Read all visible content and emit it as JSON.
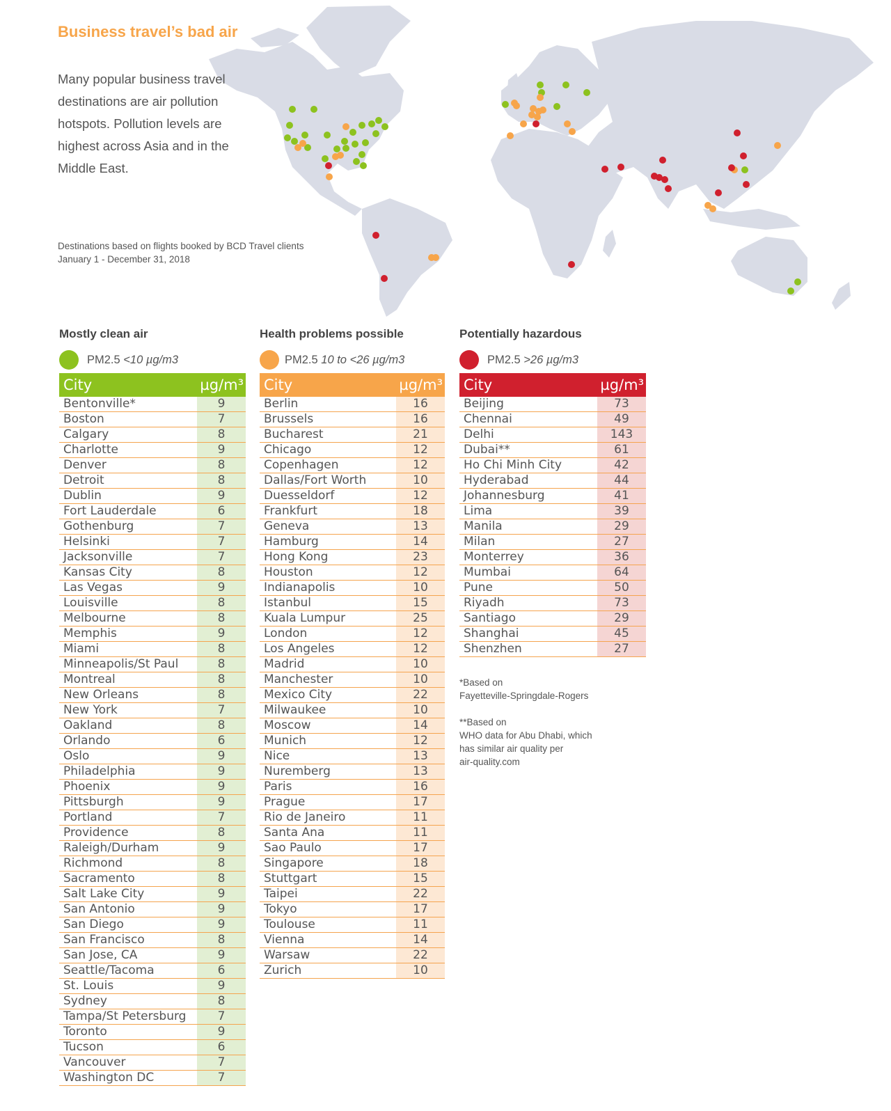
{
  "title": "Business travel’s bad air",
  "intro": "Many popular business travel destinations are air pollution hotspots. Pollution levels are highest across Asia and in the Middle East.",
  "source_line1": "Destinations based on flights booked by BCD Travel clients",
  "source_line2": "January 1 - December 31, 2018",
  "colors": {
    "green": "#8dc21f",
    "orange": "#f7a54a",
    "red": "#d0202e",
    "land": "#d9dce6"
  },
  "groups": [
    {
      "heading": "Mostly clean air",
      "legend_prefix": "PM2.5 ",
      "legend_range": "<10 µg/m3",
      "color": "green"
    },
    {
      "heading": "Health problems possible",
      "legend_prefix": "PM2.5 ",
      "legend_range": "10 to <26 µg/m3",
      "color": "orange"
    },
    {
      "heading": "Potentially hazardous",
      "legend_prefix": "PM2.5 ",
      "legend_range": ">26 µg/m3",
      "color": "red"
    }
  ],
  "table_header": {
    "city": "City",
    "unit": "µg/m³"
  },
  "tables": {
    "clean": [
      [
        "Bentonville*",
        "9"
      ],
      [
        "Boston",
        "7"
      ],
      [
        "Calgary",
        "8"
      ],
      [
        "Charlotte",
        "9"
      ],
      [
        "Denver",
        "8"
      ],
      [
        "Detroit",
        "8"
      ],
      [
        "Dublin",
        "9"
      ],
      [
        "Fort Lauderdale",
        "6"
      ],
      [
        "Gothenburg",
        "7"
      ],
      [
        "Helsinki",
        "7"
      ],
      [
        "Jacksonville",
        "7"
      ],
      [
        "Kansas City",
        "8"
      ],
      [
        "Las Vegas",
        "9"
      ],
      [
        "Louisville",
        "8"
      ],
      [
        "Melbourne",
        "8"
      ],
      [
        "Memphis",
        "9"
      ],
      [
        "Miami",
        "8"
      ],
      [
        "Minneapolis/St Paul",
        "8"
      ],
      [
        "Montreal",
        "8"
      ],
      [
        "New Orleans",
        "8"
      ],
      [
        "New York",
        "7"
      ],
      [
        "Oakland",
        "8"
      ],
      [
        "Orlando",
        "6"
      ],
      [
        "Oslo",
        "9"
      ],
      [
        "Philadelphia",
        "9"
      ],
      [
        "Phoenix",
        "9"
      ],
      [
        "Pittsburgh",
        "9"
      ],
      [
        "Portland",
        "7"
      ],
      [
        "Providence",
        "8"
      ],
      [
        "Raleigh/Durham",
        "9"
      ],
      [
        "Richmond",
        "8"
      ],
      [
        "Sacramento",
        "8"
      ],
      [
        "Salt Lake City",
        "9"
      ],
      [
        "San Antonio",
        "9"
      ],
      [
        "San Diego",
        "9"
      ],
      [
        "San Francisco",
        "8"
      ],
      [
        "San Jose, CA",
        "9"
      ],
      [
        "Seattle/Tacoma",
        "6"
      ],
      [
        "St. Louis",
        "9"
      ],
      [
        "Sydney",
        "8"
      ],
      [
        "Tampa/St Petersburg",
        "7"
      ],
      [
        "Toronto",
        "9"
      ],
      [
        "Tucson",
        "6"
      ],
      [
        "Vancouver",
        "7"
      ],
      [
        "Washington DC",
        "7"
      ]
    ],
    "moderate": [
      [
        "Berlin",
        "16"
      ],
      [
        "Brussels",
        "16"
      ],
      [
        "Bucharest",
        "21"
      ],
      [
        "Chicago",
        "12"
      ],
      [
        "Copenhagen",
        "12"
      ],
      [
        "Dallas/Fort Worth",
        "10"
      ],
      [
        "Duesseldorf",
        "12"
      ],
      [
        "Frankfurt",
        "18"
      ],
      [
        "Geneva",
        "13"
      ],
      [
        "Hamburg",
        "14"
      ],
      [
        "Hong Kong",
        "23"
      ],
      [
        "Houston",
        "12"
      ],
      [
        "Indianapolis",
        "10"
      ],
      [
        "Istanbul",
        "15"
      ],
      [
        "Kuala Lumpur",
        "25"
      ],
      [
        "London",
        "12"
      ],
      [
        "Los Angeles",
        "12"
      ],
      [
        "Madrid",
        "10"
      ],
      [
        "Manchester",
        "10"
      ],
      [
        "Mexico City",
        "22"
      ],
      [
        "Milwaukee",
        "10"
      ],
      [
        "Moscow",
        "14"
      ],
      [
        "Munich",
        "12"
      ],
      [
        "Nice",
        "13"
      ],
      [
        "Nuremberg",
        "13"
      ],
      [
        "Paris",
        "16"
      ],
      [
        "Prague",
        "17"
      ],
      [
        "Rio de Janeiro",
        "11"
      ],
      [
        "Santa Ana",
        "11"
      ],
      [
        "Sao Paulo",
        "17"
      ],
      [
        "Singapore",
        "18"
      ],
      [
        "Stuttgart",
        "15"
      ],
      [
        "Taipei",
        "22"
      ],
      [
        "Tokyo",
        "17"
      ],
      [
        "Toulouse",
        "11"
      ],
      [
        "Vienna",
        "14"
      ],
      [
        "Warsaw",
        "22"
      ],
      [
        "Zurich",
        "10"
      ]
    ],
    "hazardous": [
      [
        "Beijing",
        "73"
      ],
      [
        "Chennai",
        "49"
      ],
      [
        "Delhi",
        "143"
      ],
      [
        "Dubai**",
        "61"
      ],
      [
        "Ho Chi Minh City",
        "42"
      ],
      [
        "Hyderabad",
        "44"
      ],
      [
        "Johannesburg",
        "41"
      ],
      [
        "Lima",
        "39"
      ],
      [
        "Manila",
        "29"
      ],
      [
        "Milan",
        "27"
      ],
      [
        "Monterrey",
        "36"
      ],
      [
        "Mumbai",
        "64"
      ],
      [
        "Pune",
        "50"
      ],
      [
        "Riyadh",
        "73"
      ],
      [
        "Santiago",
        "29"
      ],
      [
        "Shanghai",
        "45"
      ],
      [
        "Shenzhen",
        "27"
      ]
    ]
  },
  "note1_line1": "*Based on",
  "note1_line2": "Fayetteville-Springdale-Rogers",
  "note2_line1": "**Based on",
  "note2_line2": "WHO data for Abu Dhabi, which",
  "note2_line3": "has similar air quality per",
  "note2_line4": "air-quality.com"
}
